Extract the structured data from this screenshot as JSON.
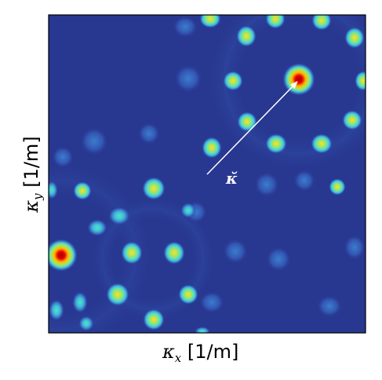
{
  "chart_data": {
    "type": "heatmap",
    "title": "",
    "xlabel": {
      "symbol": "κ",
      "subscript": "x",
      "unit": "[1/m]"
    },
    "ylabel": {
      "symbol": "κ",
      "subscript": "y",
      "unit": "[1/m]"
    },
    "colormap": [
      "#283891",
      "#3a63c5",
      "#3fa6e0",
      "#54e0c6",
      "#e6e54a",
      "#ffb800",
      "#e60000",
      "#a40000"
    ],
    "background_color": "#283891",
    "frame_color": "#000000",
    "grid": false,
    "annotation": {
      "label": "κ̆",
      "from": [
        0.5,
        0.5
      ],
      "to": [
        0.79,
        0.79
      ]
    },
    "peaks": {
      "upper_right_center": [
        0.79,
        0.79
      ],
      "lower_left_center": [
        0.05,
        0.24
      ],
      "ring_center_mid": [
        0.34,
        0.45
      ]
    }
  }
}
